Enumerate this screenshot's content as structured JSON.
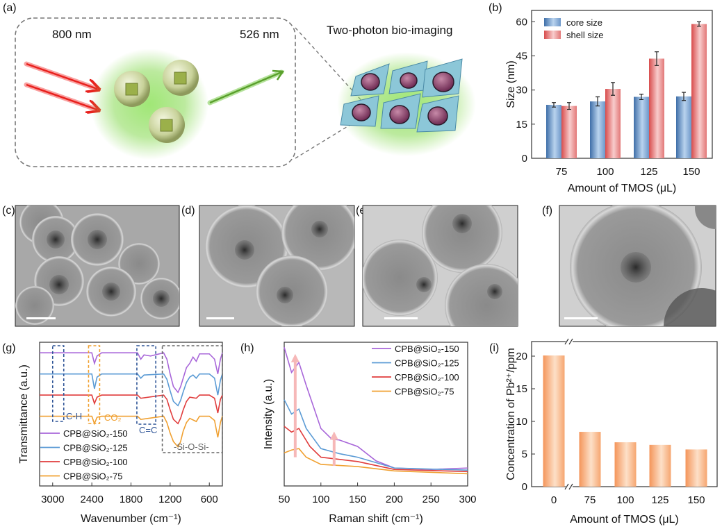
{
  "panel_labels": [
    "(a)",
    "(b)",
    "(c)",
    "(d)",
    "(e)",
    "(f)",
    "(g)",
    "(h)",
    "(i)"
  ],
  "panel_a": {
    "excitation": "800 nm",
    "emission": "526 nm",
    "title": "Two-photon bio-imaging",
    "colors": {
      "excitation": "#e8201c",
      "emission": "#5aa02c",
      "glow": "#7fd957"
    }
  },
  "tem_panels": [
    "c",
    "d",
    "e",
    "f"
  ],
  "chart_data": [
    {
      "panel": "(b)",
      "type": "bar",
      "categories": [
        "75",
        "100",
        "125",
        "150"
      ],
      "series": [
        {
          "name": "core size",
          "values": [
            23.5,
            25.0,
            27.0,
            27.2
          ],
          "errors": [
            1.0,
            2.0,
            1.2,
            1.8
          ],
          "color": "#4f7fb8"
        },
        {
          "name": "shell size",
          "values": [
            23.0,
            30.5,
            43.8,
            59.0
          ],
          "errors": [
            1.5,
            2.8,
            3.0,
            1.0
          ],
          "color": "#e06060"
        }
      ],
      "xlabel": "Amount of TMOS (μL)",
      "ylabel": "Size (nm)",
      "ylim": [
        0,
        65
      ],
      "yticks": [
        "0",
        "15",
        "30",
        "45",
        "60"
      ],
      "legend": "top-left"
    },
    {
      "panel": "(g)",
      "type": "line",
      "xlabel": "Wavenumber (cm⁻¹)",
      "ylabel": "Transmittance (a.u.)",
      "xlim": [
        3200,
        400
      ],
      "ylim": [
        -3.3,
        3.5
      ],
      "xticks": [
        "3000",
        "2400",
        "1800",
        "1200",
        "600"
      ],
      "legend": "bottom-left",
      "series": [
        {
          "name": "CPB@SiO₂-150",
          "color": "#a866d9",
          "points": [
            [
              3200,
              3
            ],
            [
              2400,
              3
            ],
            [
              2360,
              2.5
            ],
            [
              2320,
              2.85
            ],
            [
              2250,
              3
            ],
            [
              1700,
              3
            ],
            [
              1650,
              2.7
            ],
            [
              1600,
              2.9
            ],
            [
              1500,
              2.85
            ],
            [
              1300,
              3
            ],
            [
              1250,
              2.7
            ],
            [
              1200,
              2.0
            ],
            [
              1150,
              1.4
            ],
            [
              1080,
              1.13
            ],
            [
              1040,
              1.4
            ],
            [
              1000,
              1.8
            ],
            [
              950,
              2.3
            ],
            [
              900,
              2.5
            ],
            [
              850,
              2.8
            ],
            [
              800,
              2.6
            ],
            [
              750,
              2.95
            ],
            [
              600,
              2.95
            ],
            [
              520,
              2.7
            ],
            [
              470,
              2.0
            ],
            [
              430,
              2.7
            ],
            [
              400,
              3.0
            ]
          ]
        },
        {
          "name": "CPB@SiO₂-125",
          "color": "#5b9bd5",
          "points": [
            [
              3200,
              2
            ],
            [
              2400,
              2
            ],
            [
              2360,
              1.3
            ],
            [
              2320,
              1.85
            ],
            [
              2250,
              2
            ],
            [
              1700,
              2
            ],
            [
              1650,
              1.8
            ],
            [
              1600,
              1.95
            ],
            [
              1300,
              2
            ],
            [
              1250,
              1.75
            ],
            [
              1200,
              1.2
            ],
            [
              1150,
              0.7
            ],
            [
              1080,
              0.5
            ],
            [
              1040,
              0.75
            ],
            [
              1000,
              1.15
            ],
            [
              950,
              1.6
            ],
            [
              900,
              1.85
            ],
            [
              850,
              1.95
            ],
            [
              800,
              1.8
            ],
            [
              750,
              2
            ],
            [
              600,
              2
            ],
            [
              520,
              1.8
            ],
            [
              470,
              1.0
            ],
            [
              430,
              1.7
            ],
            [
              400,
              2
            ]
          ]
        },
        {
          "name": "CPB@SiO₂-100",
          "color": "#e03c3c",
          "points": [
            [
              3200,
              1
            ],
            [
              2400,
              1
            ],
            [
              2360,
              0.6
            ],
            [
              2320,
              0.9
            ],
            [
              2250,
              1
            ],
            [
              1700,
              1
            ],
            [
              1650,
              0.85
            ],
            [
              1300,
              1
            ],
            [
              1250,
              0.8
            ],
            [
              1200,
              0.3
            ],
            [
              1150,
              -0.15
            ],
            [
              1080,
              -0.35
            ],
            [
              1040,
              -0.1
            ],
            [
              1000,
              0.3
            ],
            [
              950,
              0.7
            ],
            [
              900,
              0.9
            ],
            [
              800,
              0.85
            ],
            [
              750,
              1
            ],
            [
              600,
              1
            ],
            [
              520,
              0.85
            ],
            [
              470,
              0.15
            ],
            [
              430,
              0.8
            ],
            [
              400,
              1
            ]
          ]
        },
        {
          "name": "CPB@SiO₂-75",
          "color": "#f0a030",
          "points": [
            [
              3200,
              0
            ],
            [
              2400,
              0
            ],
            [
              2360,
              -0.35
            ],
            [
              2320,
              -0.05
            ],
            [
              2250,
              0
            ],
            [
              1700,
              0
            ],
            [
              1650,
              -0.15
            ],
            [
              1300,
              0
            ],
            [
              1250,
              -0.3
            ],
            [
              1200,
              -0.8
            ],
            [
              1150,
              -1.2
            ],
            [
              1080,
              -1.45
            ],
            [
              1040,
              -1.2
            ],
            [
              1000,
              -0.7
            ],
            [
              950,
              -0.3
            ],
            [
              900,
              -0.1
            ],
            [
              800,
              -0.25
            ],
            [
              750,
              0
            ],
            [
              600,
              0
            ],
            [
              520,
              -0.2
            ],
            [
              470,
              -1.0
            ],
            [
              430,
              -0.3
            ],
            [
              400,
              0
            ]
          ]
        }
      ],
      "annotations": [
        {
          "label": "C-H",
          "range": [
            3000,
            2830
          ],
          "color": "#2f5597"
        },
        {
          "label": "CO₂",
          "range": [
            2450,
            2280
          ],
          "color": "#f0a030"
        },
        {
          "label": "C=C",
          "range": [
            1710,
            1420
          ],
          "color": "#2f5597"
        },
        {
          "label": "-Si-O-Si-",
          "range": [
            1320,
            400
          ],
          "color": "#666666"
        }
      ]
    },
    {
      "panel": "(h)",
      "type": "line",
      "xlabel": "Raman shift (cm⁻¹)",
      "ylabel": "Intensity (a.u.)",
      "xlim": [
        50,
        300
      ],
      "ylim": [
        0,
        200
      ],
      "xticks": [
        "50",
        "100",
        "150",
        "200",
        "250",
        "300"
      ],
      "legend": "top-right",
      "series": [
        {
          "name": "CPB@SiO₂-150",
          "color": "#a866d9",
          "points": [
            [
              50,
              193
            ],
            [
              60,
              158
            ],
            [
              70,
              172
            ],
            [
              80,
              140
            ],
            [
              90,
              110
            ],
            [
              100,
              80
            ],
            [
              115,
              65
            ],
            [
              125,
              64
            ],
            [
              150,
              55
            ],
            [
              175,
              35
            ],
            [
              200,
              25
            ],
            [
              250,
              23
            ],
            [
              300,
              25
            ]
          ]
        },
        {
          "name": "CPB@SiO₂-125",
          "color": "#5b9bd5",
          "points": [
            [
              50,
              120
            ],
            [
              60,
              100
            ],
            [
              70,
              107
            ],
            [
              80,
              80
            ],
            [
              100,
              52
            ],
            [
              125,
              45
            ],
            [
              150,
              40
            ],
            [
              200,
              25
            ],
            [
              300,
              22
            ]
          ]
        },
        {
          "name": "CPB@SiO₂-100",
          "color": "#e03c3c",
          "points": [
            [
              50,
              83
            ],
            [
              60,
              75
            ],
            [
              70,
              80
            ],
            [
              85,
              55
            ],
            [
              100,
              40
            ],
            [
              125,
              37
            ],
            [
              150,
              34
            ],
            [
              200,
              23
            ],
            [
              300,
              20
            ]
          ]
        },
        {
          "name": "CPB@SiO₂-75",
          "color": "#f0a030",
          "points": [
            [
              50,
              46
            ],
            [
              60,
              50
            ],
            [
              70,
              52
            ],
            [
              80,
              40
            ],
            [
              100,
              30
            ],
            [
              150,
              27
            ],
            [
              200,
              21
            ],
            [
              300,
              17
            ]
          ]
        }
      ],
      "arrows": [
        {
          "x": 65,
          "from": 40,
          "to": 180
        },
        {
          "x": 118,
          "from": 28,
          "to": 72
        }
      ]
    },
    {
      "panel": "(i)",
      "type": "bar",
      "categories": [
        "0",
        "75",
        "100",
        "125",
        "150"
      ],
      "values": [
        20.1,
        8.4,
        6.8,
        6.4,
        5.7
      ],
      "color": "#f4a46a",
      "xlabel": "Amount of TMOS (μL)",
      "ylabel": "Concentration of Pb²⁺/ppm",
      "ylim": [
        0,
        20
      ],
      "yticks": [
        "0",
        "5",
        "10",
        "15",
        "20"
      ],
      "axis_break": "between 0 and 75"
    }
  ]
}
